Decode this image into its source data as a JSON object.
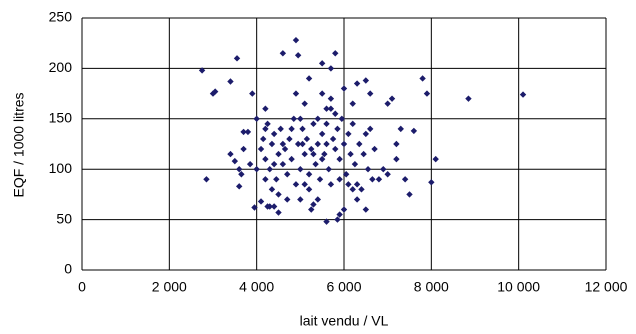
{
  "chart_data": {
    "type": "scatter",
    "xlabel": "lait vendu / VL",
    "ylabel": "EQF / 1000 litres",
    "color": "#1c1c6b",
    "grid": true,
    "xlim": [
      0,
      12000
    ],
    "xticks": [
      0,
      {
        "value": 2000,
        "label": "2 000"
      },
      {
        "value": 4000,
        "label": "4 000"
      },
      {
        "value": 6000,
        "label": "6 000"
      },
      {
        "value": 8000,
        "label": "8 000"
      },
      {
        "value": 10000,
        "label": "10 000"
      },
      {
        "value": 12000,
        "label": "12 000"
      }
    ],
    "ylim": [
      0,
      250
    ],
    "yticks": [
      0,
      50,
      100,
      150,
      200,
      250
    ],
    "x": [
      2750,
      2850,
      3000,
      3050,
      3400,
      3550,
      3400,
      3500,
      3600,
      3650,
      3700,
      3800,
      3850,
      3900,
      3950,
      4100,
      4000,
      4200,
      4200,
      4250,
      4300,
      4350,
      4400,
      4500,
      4600,
      4900,
      4950,
      5000,
      5050,
      5100,
      5200,
      5250,
      5300,
      5400,
      5500,
      5600,
      5700,
      5800,
      5850,
      5900,
      6000,
      6100,
      6200,
      6300,
      6500,
      6600,
      6800,
      7000,
      7100,
      7200,
      7300,
      7400,
      7500,
      7600,
      7800,
      7900,
      8000,
      8100,
      8850,
      10100,
      4100,
      4150,
      4200,
      4250,
      4300,
      4350,
      4400,
      4450,
      4500,
      4550,
      4600,
      4650,
      4700,
      4750,
      4800,
      4850,
      4900,
      4950,
      5000,
      5050,
      5100,
      5150,
      5200,
      5250,
      5300,
      5350,
      5400,
      5450,
      5500,
      5550,
      5600,
      5650,
      5700,
      5750,
      5800,
      5850,
      5900,
      5950,
      6000,
      6050,
      6100,
      6150,
      6200,
      6250,
      6300,
      6350,
      6400,
      6450,
      6500,
      6550,
      6600,
      6650,
      5500,
      5600,
      5700,
      5800,
      5600,
      5500,
      5400,
      5300,
      4800,
      4600,
      4400,
      4200,
      4500,
      4700,
      5000,
      5200,
      5700,
      6200,
      6300,
      6500,
      5900,
      5100,
      4900,
      6000,
      3700,
      3600,
      4000,
      6700,
      6900,
      7200,
      7000
    ],
    "values": [
      198,
      90,
      175,
      177,
      187,
      210,
      115,
      108,
      83,
      95,
      137,
      137,
      105,
      175,
      62,
      68,
      100,
      140,
      160,
      63,
      63,
      80,
      63,
      57,
      215,
      228,
      213,
      150,
      125,
      85,
      190,
      60,
      65,
      70,
      205,
      48,
      200,
      215,
      50,
      55,
      60,
      85,
      165,
      185,
      188,
      175,
      90,
      165,
      170,
      125,
      140,
      90,
      75,
      138,
      190,
      175,
      87,
      110,
      170,
      174,
      120,
      130,
      110,
      145,
      100,
      125,
      135,
      90,
      115,
      140,
      105,
      120,
      95,
      130,
      110,
      150,
      85,
      125,
      100,
      140,
      115,
      130,
      95,
      120,
      145,
      105,
      125,
      90,
      135,
      115,
      145,
      100,
      160,
      130,
      120,
      140,
      110,
      150,
      125,
      95,
      135,
      115,
      145,
      105,
      85,
      125,
      80,
      115,
      135,
      100,
      140,
      90,
      175,
      160,
      170,
      155,
      125,
      110,
      150,
      115,
      140,
      125,
      105,
      90,
      75,
      70,
      70,
      80,
      85,
      80,
      70,
      60,
      90,
      165,
      175,
      180,
      120,
      100,
      150,
      120,
      100,
      110,
      95
    ]
  }
}
